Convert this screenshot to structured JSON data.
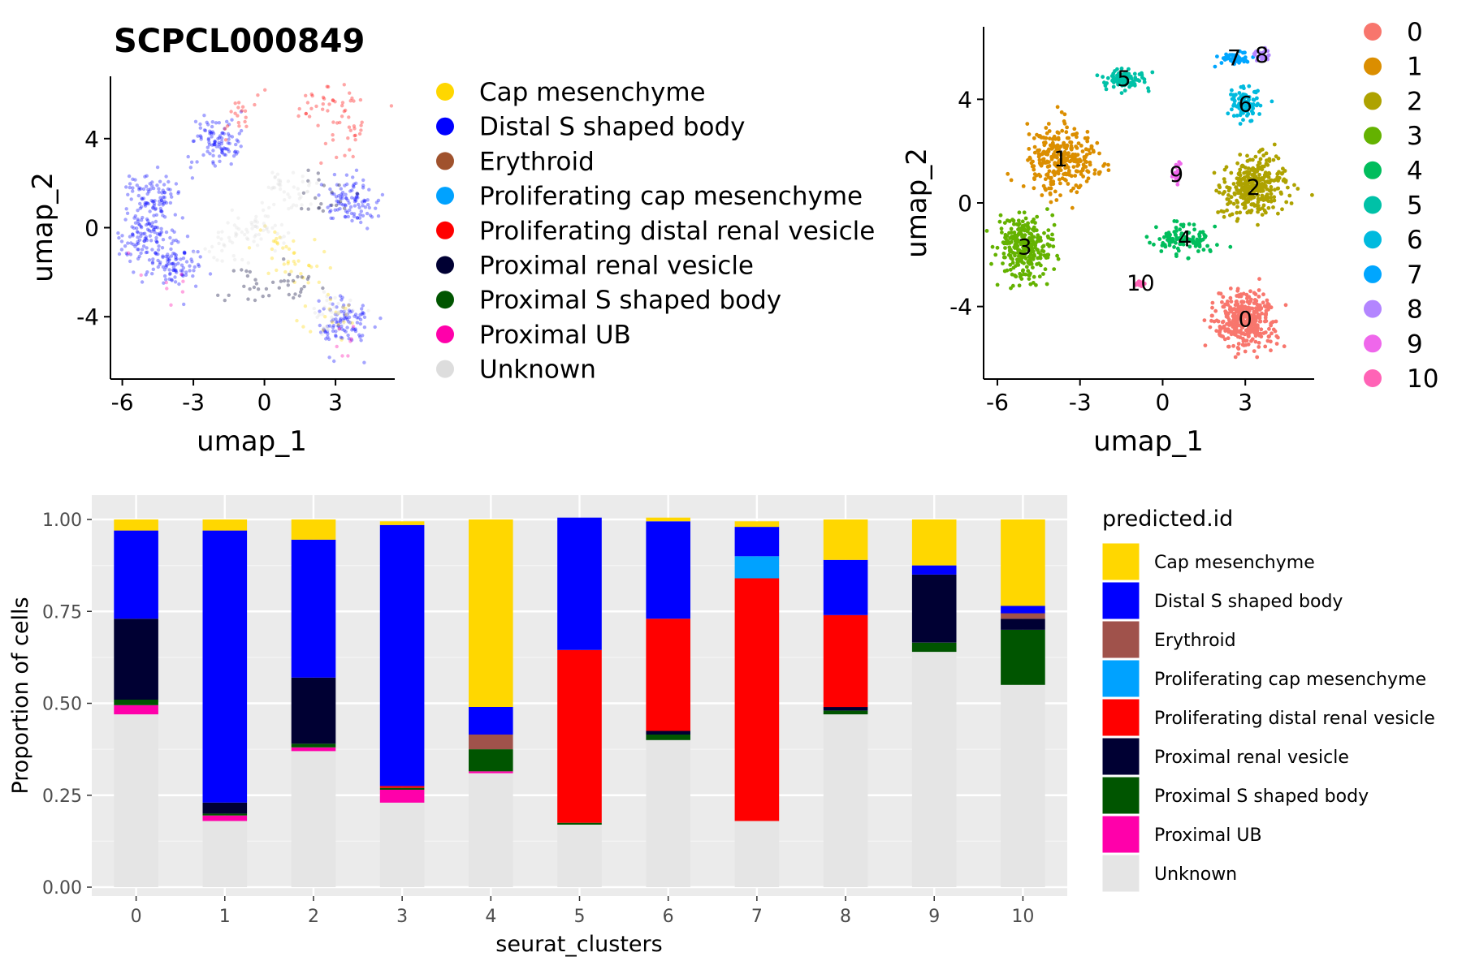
{
  "chart_data": [
    {
      "type": "scatter",
      "title": "SCPCL000849",
      "xlabel": "umap_1",
      "ylabel": "umap_2",
      "xticks": [
        "-6",
        "-3",
        "0",
        "3"
      ],
      "yticks": [
        "4",
        "0",
        "-4"
      ],
      "xlim": [
        -6.5,
        5.5
      ],
      "ylim": [
        -6.8,
        6.8
      ],
      "grid": false,
      "legend_position": "right",
      "legend": [
        {
          "label": "Cap mesenchyme",
          "color": "#FFD700"
        },
        {
          "label": "Distal S shaped body",
          "color": "#0000FF"
        },
        {
          "label": "Erythroid",
          "color": "#A0522D"
        },
        {
          "label": "Proliferating cap mesenchyme",
          "color": "#00A2FF"
        },
        {
          "label": "Proliferating distal renal vesicle",
          "color": "#FF0000"
        },
        {
          "label": "Proximal renal vesicle",
          "color": "#000033"
        },
        {
          "label": "Proximal S shaped body",
          "color": "#005500"
        },
        {
          "label": "Proximal UB",
          "color": "#FF00AA"
        },
        {
          "label": "Unknown",
          "color": "#DDDDDD"
        }
      ],
      "groups": [
        {
          "cell_type": "Distal S shaped body",
          "centers": [
            [
              -4.8,
              1.4
            ],
            [
              -5.2,
              -0.3
            ],
            [
              -3.8,
              -1.6
            ],
            [
              3.6,
              1.2
            ],
            [
              3.4,
              -4.3
            ],
            [
              -2,
              3.8
            ]
          ],
          "n": 600
        },
        {
          "cell_type": "Proliferating distal renal vesicle",
          "centers": [
            [
              -1,
              5.2
            ],
            [
              2.2,
              5.6
            ],
            [
              3.6,
              5.5
            ],
            [
              3.2,
              4
            ]
          ],
          "n": 80
        },
        {
          "cell_type": "Cap mesenchyme",
          "centers": [
            [
              0.5,
              -1
            ],
            [
              1.5,
              -1.8
            ],
            [
              2.6,
              -4
            ]
          ],
          "n": 60
        },
        {
          "cell_type": "Proximal renal vesicle",
          "centers": [
            [
              2.6,
              1.2
            ],
            [
              1.2,
              -2.5
            ],
            [
              -0.5,
              -2.6
            ]
          ],
          "n": 60
        },
        {
          "cell_type": "Unknown",
          "centers": [
            [
              0.2,
              0
            ],
            [
              1,
              1.6
            ],
            [
              -1.5,
              -0.5
            ],
            [
              2.8,
              -3.8
            ]
          ],
          "n": 150
        },
        {
          "cell_type": "Proximal UB",
          "centers": [
            [
              -4.2,
              -2.4
            ],
            [
              3.4,
              -5
            ]
          ],
          "n": 15
        }
      ]
    },
    {
      "type": "scatter",
      "xlabel": "umap_1",
      "ylabel": "umap_2",
      "xticks": [
        "-6",
        "-3",
        "0",
        "3"
      ],
      "yticks": [
        "4",
        "0",
        "-4"
      ],
      "xlim": [
        -6.5,
        5.5
      ],
      "ylim": [
        -6.8,
        6.8
      ],
      "grid": false,
      "legend_position": "right",
      "clusters": [
        {
          "label": "0",
          "color": "#F8766D",
          "center": [
            3,
            -4.5
          ],
          "spread": [
            1.1,
            1.0
          ],
          "n": 380
        },
        {
          "label": "1",
          "color": "#DB8E00",
          "center": [
            -3.7,
            1.7
          ],
          "spread": [
            1.3,
            1.2
          ],
          "n": 300
        },
        {
          "label": "2",
          "color": "#AEA200",
          "center": [
            3.3,
            0.6
          ],
          "spread": [
            1.2,
            1.0
          ],
          "n": 320
        },
        {
          "label": "3",
          "color": "#64B200",
          "center": [
            -5.0,
            -1.7
          ],
          "spread": [
            1.0,
            1.2
          ],
          "n": 300
        },
        {
          "label": "4",
          "color": "#00BD5C",
          "center": [
            0.8,
            -1.4
          ],
          "spread": [
            1.1,
            0.6
          ],
          "n": 110
        },
        {
          "label": "5",
          "color": "#00C1A7",
          "center": [
            -1.4,
            4.8
          ],
          "spread": [
            0.8,
            0.4
          ],
          "n": 90
        },
        {
          "label": "6",
          "color": "#00BADE",
          "center": [
            3.0,
            3.8
          ],
          "spread": [
            0.6,
            0.6
          ],
          "n": 90
        },
        {
          "label": "7",
          "color": "#00A6FF",
          "center": [
            2.6,
            5.6
          ],
          "spread": [
            0.5,
            0.3
          ],
          "n": 40
        },
        {
          "label": "8",
          "color": "#B385FF",
          "center": [
            3.6,
            5.7
          ],
          "spread": [
            0.3,
            0.2
          ],
          "n": 25
        },
        {
          "label": "9",
          "color": "#EF67EB",
          "center": [
            0.5,
            1.1
          ],
          "spread": [
            0.15,
            0.5
          ],
          "n": 25
        },
        {
          "label": "10",
          "color": "#FF63B6",
          "center": [
            -0.8,
            -3.1
          ],
          "spread": [
            0.15,
            0.15
          ],
          "n": 12
        }
      ]
    },
    {
      "type": "bar",
      "stacked": true,
      "xlabel": "seurat_clusters",
      "ylabel": "Proportion of cells",
      "categories": [
        "0",
        "1",
        "2",
        "3",
        "4",
        "5",
        "6",
        "7",
        "8",
        "9",
        "10"
      ],
      "yticks": [
        "0.00",
        "0.25",
        "0.50",
        "0.75",
        "1.00"
      ],
      "ylim": [
        0,
        1
      ],
      "grid": true,
      "legend_title": "predicted.id",
      "legend_position": "right",
      "stack_order_bottom_to_top": [
        "Unknown",
        "Proximal UB",
        "Proximal S shaped body",
        "Proximal renal vesicle",
        "Proliferating distal renal vesicle",
        "Proliferating cap mesenchyme",
        "Erythroid",
        "Distal S shaped body",
        "Cap mesenchyme"
      ],
      "legend": [
        {
          "label": "Cap mesenchyme",
          "color": "#FFD700"
        },
        {
          "label": "Distal S shaped body",
          "color": "#0000FF"
        },
        {
          "label": "Erythroid",
          "color": "#A0524B"
        },
        {
          "label": "Proliferating cap mesenchyme",
          "color": "#00A2FF"
        },
        {
          "label": "Proliferating distal renal vesicle",
          "color": "#FF0000"
        },
        {
          "label": "Proximal renal vesicle",
          "color": "#000033"
        },
        {
          "label": "Proximal S shaped body",
          "color": "#005500"
        },
        {
          "label": "Proximal UB",
          "color": "#FF00AA"
        },
        {
          "label": "Unknown",
          "color": "#E5E5E5"
        }
      ],
      "series": [
        {
          "name": "Unknown",
          "values": [
            0.47,
            0.18,
            0.37,
            0.23,
            0.31,
            0.17,
            0.4,
            0.18,
            0.47,
            0.64,
            0.55
          ]
        },
        {
          "name": "Proximal UB",
          "values": [
            0.025,
            0.015,
            0.01,
            0.035,
            0.005,
            0,
            0,
            0,
            0,
            0,
            0
          ]
        },
        {
          "name": "Proximal S shaped body",
          "values": [
            0.015,
            0.005,
            0.01,
            0.005,
            0.06,
            0.005,
            0.015,
            0,
            0.01,
            0.025,
            0.15
          ]
        },
        {
          "name": "Proximal renal vesicle",
          "values": [
            0.22,
            0.03,
            0.18,
            0,
            0,
            0,
            0.01,
            0,
            0.01,
            0.185,
            0.03
          ]
        },
        {
          "name": "Proliferating distal renal vesicle",
          "values": [
            0,
            0,
            0,
            0.005,
            0,
            0.47,
            0.305,
            0.66,
            0.25,
            0,
            0
          ]
        },
        {
          "name": "Proliferating cap mesenchyme",
          "values": [
            0,
            0,
            0,
            0,
            0,
            0,
            0,
            0.06,
            0,
            0,
            0
          ]
        },
        {
          "name": "Erythroid",
          "values": [
            0,
            0,
            0,
            0,
            0.04,
            0,
            0,
            0,
            0,
            0,
            0.015
          ]
        },
        {
          "name": "Distal S shaped body",
          "values": [
            0.24,
            0.74,
            0.375,
            0.71,
            0.075,
            0.36,
            0.265,
            0.08,
            0.15,
            0.025,
            0.02
          ]
        },
        {
          "name": "Cap mesenchyme",
          "values": [
            0.03,
            0.03,
            0.055,
            0.01,
            0.51,
            0,
            0.01,
            0.015,
            0.11,
            0.125,
            0.235
          ]
        }
      ]
    }
  ]
}
